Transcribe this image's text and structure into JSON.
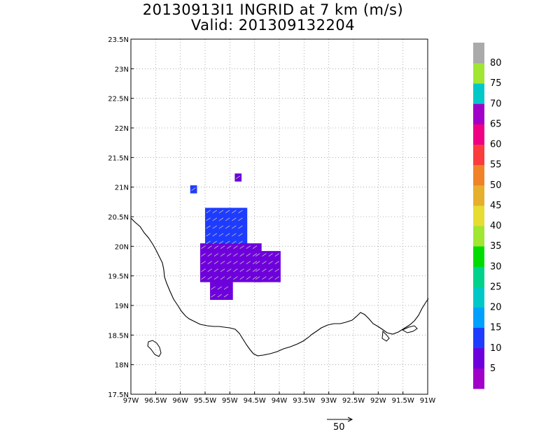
{
  "title": "20130913I1 INGRID at 7 km (m/s)",
  "subtitle": "Valid: 201309132204",
  "chart_data": {
    "type": "heatmap",
    "title": "20130913I1 INGRID at 7 km (m/s)",
    "subtitle": "Valid: 201309132204",
    "xlim": [
      -97,
      -91
    ],
    "ylim": [
      17.5,
      23.5
    ],
    "grid": true,
    "x_ticks": [
      {
        "value": -97,
        "label": "97W"
      },
      {
        "value": -96.5,
        "label": "96.5W"
      },
      {
        "value": -96,
        "label": "96W"
      },
      {
        "value": -95.5,
        "label": "95.5W"
      },
      {
        "value": -95,
        "label": "95W"
      },
      {
        "value": -94.5,
        "label": "94.5W"
      },
      {
        "value": -94,
        "label": "94W"
      },
      {
        "value": -93.5,
        "label": "93.5W"
      },
      {
        "value": -93,
        "label": "93W"
      },
      {
        "value": -92.5,
        "label": "92.5W"
      },
      {
        "value": -92,
        "label": "92W"
      },
      {
        "value": -91.5,
        "label": "91.5W"
      },
      {
        "value": -91,
        "label": "91W"
      }
    ],
    "y_ticks": [
      {
        "value": 17.5,
        "label": "17.5N"
      },
      {
        "value": 18,
        "label": "18N"
      },
      {
        "value": 18.5,
        "label": "18.5N"
      },
      {
        "value": 19,
        "label": "19N"
      },
      {
        "value": 19.5,
        "label": "19.5N"
      },
      {
        "value": 20,
        "label": "20N"
      },
      {
        "value": 20.5,
        "label": "20.5N"
      },
      {
        "value": 21,
        "label": "21N"
      },
      {
        "value": 21.5,
        "label": "21.5N"
      },
      {
        "value": 22,
        "label": "22N"
      },
      {
        "value": 22.5,
        "label": "22.5N"
      },
      {
        "value": 23,
        "label": "23N"
      },
      {
        "value": 23.5,
        "label": "23.5N"
      }
    ],
    "colorbar": {
      "labels": [
        "5",
        "10",
        "15",
        "20",
        "25",
        "30",
        "35",
        "40",
        "45",
        "50",
        "55",
        "60",
        "65",
        "70",
        "75",
        "80"
      ],
      "colors": [
        "#a000c8",
        "#6e00dc",
        "#1e3cff",
        "#00a0ff",
        "#00c8c8",
        "#00d28c",
        "#00dc00",
        "#a0e632",
        "#e6dc32",
        "#e6af2d",
        "#f08228",
        "#fa3c3c",
        "#f00082",
        "#a000c8",
        "#00c8c8",
        "#a0e632",
        "#aaaaaa"
      ]
    },
    "wind_regions": [
      {
        "lon": [
          -95.5,
          -94.7
        ],
        "lat": [
          20.0,
          20.6
        ],
        "speed": 10
      },
      {
        "lon": [
          -95.6,
          -94.4
        ],
        "lat": [
          19.4,
          20.0
        ],
        "speed": 8
      },
      {
        "lon": [
          -94.5,
          -94.0
        ],
        "lat": [
          19.4,
          19.9
        ],
        "speed": 5
      },
      {
        "lon": [
          -95.4,
          -95.0
        ],
        "lat": [
          19.1,
          19.4
        ],
        "speed": 6
      },
      {
        "lon": [
          -95.8,
          -95.7
        ],
        "lat": [
          20.9,
          21.0
        ],
        "speed": 12
      },
      {
        "lon": [
          -94.9,
          -94.8
        ],
        "lat": [
          21.1,
          21.2
        ],
        "speed": 5
      }
    ],
    "reference_vector": {
      "label": "50",
      "speed": 50
    }
  }
}
